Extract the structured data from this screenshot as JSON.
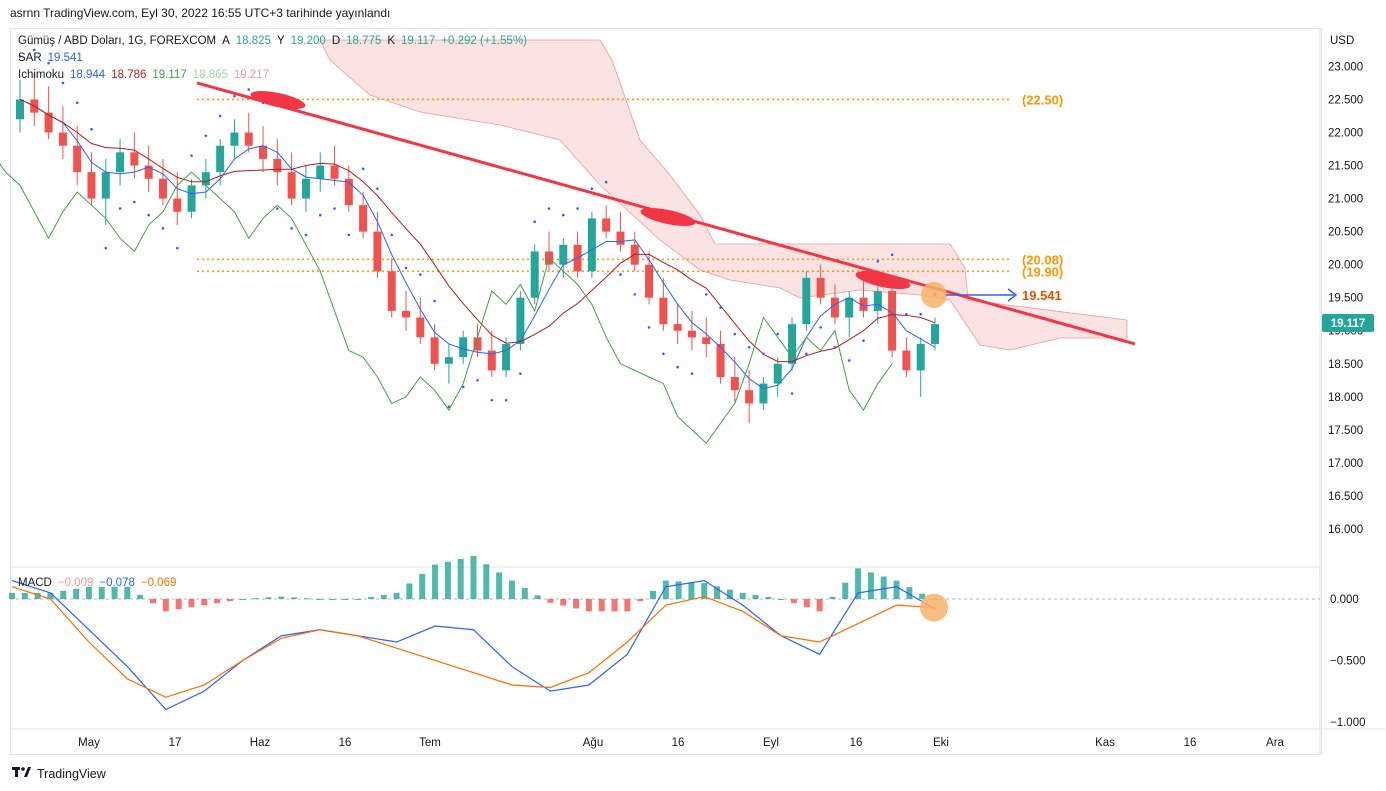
{
  "header": {
    "published": "asrnn TradingView.com, Eyl 30, 2022 16:55 UTC+3 tarihinde yayınlandı"
  },
  "legend": {
    "symbol": "Gümüş / ABD Doları, 1G, FOREXCOM",
    "open_label": "A",
    "open": "18.825",
    "high_label": "Y",
    "high": "19.200",
    "low_label": "D",
    "low": "18.775",
    "close_label": "K",
    "close": "19.117",
    "change": "+0.292 (+1.55%)",
    "sar_label": "SAR",
    "sar": "19.541",
    "ichimoku_label": "Ichimoku",
    "ichimoku_values": [
      "18.944",
      "18.786",
      "19.117",
      "18.865",
      "19.217"
    ],
    "macd_label": "MACD",
    "macd_values": [
      "−0.009",
      "−0.078",
      "−0.069"
    ]
  },
  "colors": {
    "up": "#26a69a",
    "down": "#ef5350",
    "trend": "#f23645",
    "level": "#ff9800",
    "sar": "#2962ff",
    "tenkan": "#2962ff",
    "kijun": "#b71c1c",
    "chikou": "#43a047",
    "cloud": "#f8c8c8",
    "macd": "#2962ff",
    "signal": "#ff6d00",
    "marker": "#f6b26b"
  },
  "annotations": {
    "levels": [
      "(22.50)",
      "(20.08)",
      "(19.90)"
    ],
    "sar_target": "19.541",
    "last_price_tag": "19.117"
  },
  "footer": {
    "brand": "TradingView"
  },
  "chart_data": [
    {
      "type": "candlestick",
      "title": "Gümüş / ABD Doları, 1G, FOREXCOM",
      "currency": "USD",
      "y_ticks": [
        "23.000",
        "22.500",
        "22.000",
        "21.500",
        "21.000",
        "20.500",
        "20.000",
        "19.500",
        "19.000",
        "18.500",
        "18.000",
        "17.500",
        "17.000",
        "16.500",
        "16.000"
      ],
      "ylim": [
        15.5,
        23.4
      ],
      "x_ticks": [
        "May",
        "17",
        "Haz",
        "16",
        "Tem",
        "Ağu",
        "16",
        "Eyl",
        "16",
        "Eki",
        "Kas",
        "16",
        "Ara"
      ],
      "horizontal_levels": [
        22.5,
        20.08,
        19.9
      ],
      "trendline": {
        "from": {
          "date": "2022-05-26",
          "value": 22.75
        },
        "to": {
          "date": "2022-11-09",
          "value": 18.8
        }
      },
      "sar_last": 19.541,
      "last_close": 19.117,
      "ohlc_approx": [
        [
          22.2,
          22.8,
          22.0,
          22.5
        ],
        [
          22.5,
          22.9,
          22.1,
          22.3
        ],
        [
          22.3,
          22.7,
          21.9,
          22.0
        ],
        [
          22.0,
          22.4,
          21.6,
          21.8
        ],
        [
          21.8,
          22.1,
          21.2,
          21.4
        ],
        [
          21.4,
          21.7,
          20.9,
          21.0
        ],
        [
          21.0,
          21.6,
          20.6,
          21.4
        ],
        [
          21.4,
          21.9,
          21.2,
          21.7
        ],
        [
          21.7,
          22.0,
          21.3,
          21.5
        ],
        [
          21.5,
          21.8,
          21.1,
          21.3
        ],
        [
          21.3,
          21.6,
          20.9,
          21.0
        ],
        [
          21.0,
          21.4,
          20.6,
          20.8
        ],
        [
          20.8,
          21.3,
          20.7,
          21.2
        ],
        [
          21.2,
          21.6,
          21.0,
          21.4
        ],
        [
          21.4,
          21.9,
          21.2,
          21.8
        ],
        [
          21.8,
          22.2,
          21.6,
          22.0
        ],
        [
          22.0,
          22.3,
          21.7,
          21.8
        ],
        [
          21.8,
          22.1,
          21.4,
          21.6
        ],
        [
          21.6,
          21.9,
          21.2,
          21.4
        ],
        [
          21.4,
          21.7,
          20.9,
          21.0
        ],
        [
          21.0,
          21.5,
          20.8,
          21.3
        ],
        [
          21.3,
          21.7,
          21.1,
          21.5
        ],
        [
          21.5,
          21.8,
          21.2,
          21.3
        ],
        [
          21.3,
          21.5,
          20.8,
          20.9
        ],
        [
          20.9,
          21.1,
          20.4,
          20.5
        ],
        [
          20.5,
          20.8,
          19.8,
          19.9
        ],
        [
          19.9,
          20.1,
          19.2,
          19.3
        ],
        [
          19.3,
          19.6,
          19.0,
          19.2
        ],
        [
          19.2,
          19.5,
          18.8,
          18.9
        ],
        [
          18.9,
          19.1,
          18.4,
          18.5
        ],
        [
          18.5,
          18.8,
          18.2,
          18.6
        ],
        [
          18.6,
          19.0,
          18.5,
          18.9
        ],
        [
          18.9,
          19.1,
          18.6,
          18.7
        ],
        [
          18.7,
          19.0,
          18.3,
          18.4
        ],
        [
          18.4,
          18.9,
          18.3,
          18.8
        ],
        [
          18.8,
          19.6,
          18.7,
          19.5
        ],
        [
          19.5,
          20.3,
          19.4,
          20.2
        ],
        [
          20.2,
          20.5,
          19.9,
          20.0
        ],
        [
          20.0,
          20.4,
          19.8,
          20.3
        ],
        [
          20.3,
          20.5,
          19.8,
          19.9
        ],
        [
          19.9,
          20.8,
          19.8,
          20.7
        ],
        [
          20.7,
          20.9,
          20.4,
          20.5
        ],
        [
          20.5,
          20.8,
          20.2,
          20.3
        ],
        [
          20.3,
          20.5,
          19.9,
          20.0
        ],
        [
          20.0,
          20.2,
          19.4,
          19.5
        ],
        [
          19.5,
          19.8,
          19.0,
          19.1
        ],
        [
          19.1,
          19.4,
          18.8,
          19.0
        ],
        [
          19.0,
          19.3,
          18.7,
          18.9
        ],
        [
          18.9,
          19.2,
          18.6,
          18.8
        ],
        [
          18.8,
          19.0,
          18.2,
          18.3
        ],
        [
          18.3,
          18.6,
          17.9,
          18.1
        ],
        [
          18.1,
          18.4,
          17.6,
          17.9
        ],
        [
          17.9,
          18.3,
          17.8,
          18.2
        ],
        [
          18.2,
          18.6,
          18.0,
          18.5
        ],
        [
          18.5,
          19.2,
          18.4,
          19.1
        ],
        [
          19.1,
          19.9,
          19.0,
          19.8
        ],
        [
          19.8,
          20.0,
          19.4,
          19.5
        ],
        [
          19.5,
          19.7,
          19.1,
          19.2
        ],
        [
          19.2,
          19.6,
          18.9,
          19.5
        ],
        [
          19.5,
          19.8,
          19.2,
          19.3
        ],
        [
          19.3,
          19.7,
          19.1,
          19.6
        ],
        [
          19.6,
          19.8,
          18.6,
          18.7
        ],
        [
          18.7,
          18.9,
          18.3,
          18.4
        ],
        [
          18.4,
          18.9,
          18.0,
          18.8
        ],
        [
          18.8,
          19.2,
          18.7,
          19.1
        ]
      ]
    },
    {
      "type": "line",
      "title": "MACD",
      "y_ticks": [
        "0.000",
        "−0.500",
        "−1.000"
      ],
      "ylim": [
        -1.05,
        0.22
      ],
      "last_values": {
        "histogram": -0.009,
        "macd": -0.078,
        "signal": -0.069
      },
      "x": [
        0,
        3,
        6,
        9,
        12,
        15,
        18,
        21,
        24,
        27,
        30,
        33,
        36,
        39,
        42,
        45,
        48,
        51,
        54,
        57,
        60,
        63,
        66,
        69,
        72
      ],
      "series": [
        {
          "name": "MACD",
          "values": [
            0.15,
            0.05,
            -0.25,
            -0.55,
            -0.9,
            -0.75,
            -0.5,
            -0.3,
            -0.25,
            -0.3,
            -0.35,
            -0.22,
            -0.25,
            -0.55,
            -0.75,
            -0.7,
            -0.45,
            0.1,
            0.15,
            -0.05,
            -0.3,
            -0.45,
            0.05,
            0.1,
            -0.08
          ]
        },
        {
          "name": "Signal",
          "values": [
            0.1,
            0.0,
            -0.35,
            -0.65,
            -0.8,
            -0.7,
            -0.5,
            -0.32,
            -0.25,
            -0.3,
            -0.4,
            -0.5,
            -0.6,
            -0.7,
            -0.72,
            -0.6,
            -0.35,
            -0.05,
            0.02,
            -0.1,
            -0.3,
            -0.35,
            -0.2,
            -0.05,
            -0.07
          ]
        }
      ]
    }
  ]
}
